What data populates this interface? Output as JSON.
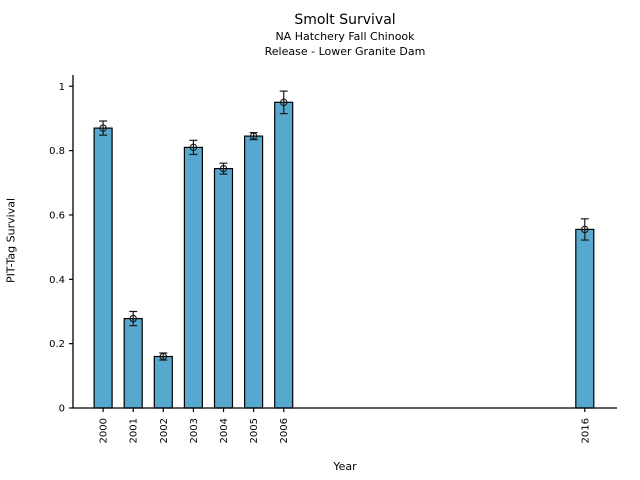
{
  "chart_data": {
    "type": "bar",
    "title": "Smolt Survival",
    "subtitle1": "NA Hatchery Fall Chinook",
    "subtitle2": "Release - Lower Granite Dam",
    "xlabel": "Year",
    "ylabel": "PIT-Tag Survival",
    "categories": [
      "2000",
      "2001",
      "2002",
      "2003",
      "2004",
      "2005",
      "2006",
      "2016"
    ],
    "x": [
      2000,
      2001,
      2002,
      2003,
      2004,
      2005,
      2006,
      2016
    ],
    "values": [
      0.87,
      0.278,
      0.16,
      0.81,
      0.744,
      0.845,
      0.95,
      0.555
    ],
    "errors": [
      0.022,
      0.022,
      0.011,
      0.022,
      0.017,
      0.011,
      0.035,
      0.033
    ],
    "xlim": [
      1999,
      2017.07
    ],
    "ylim": [
      0,
      1.035
    ],
    "yticks": [
      0,
      0.2,
      0.4,
      0.6,
      0.8,
      1
    ],
    "ytick_labels": [
      "0",
      "0.2",
      "0.4",
      "0.6",
      "0.8",
      "1"
    ],
    "grid": false,
    "legend": null,
    "marker": "open-circle",
    "bar_color": "#56A8CF",
    "bar_edge_color": "#000000",
    "errorbar_color": "#1a1a1a",
    "axis_color": "#000000",
    "text_color": "#000000"
  }
}
